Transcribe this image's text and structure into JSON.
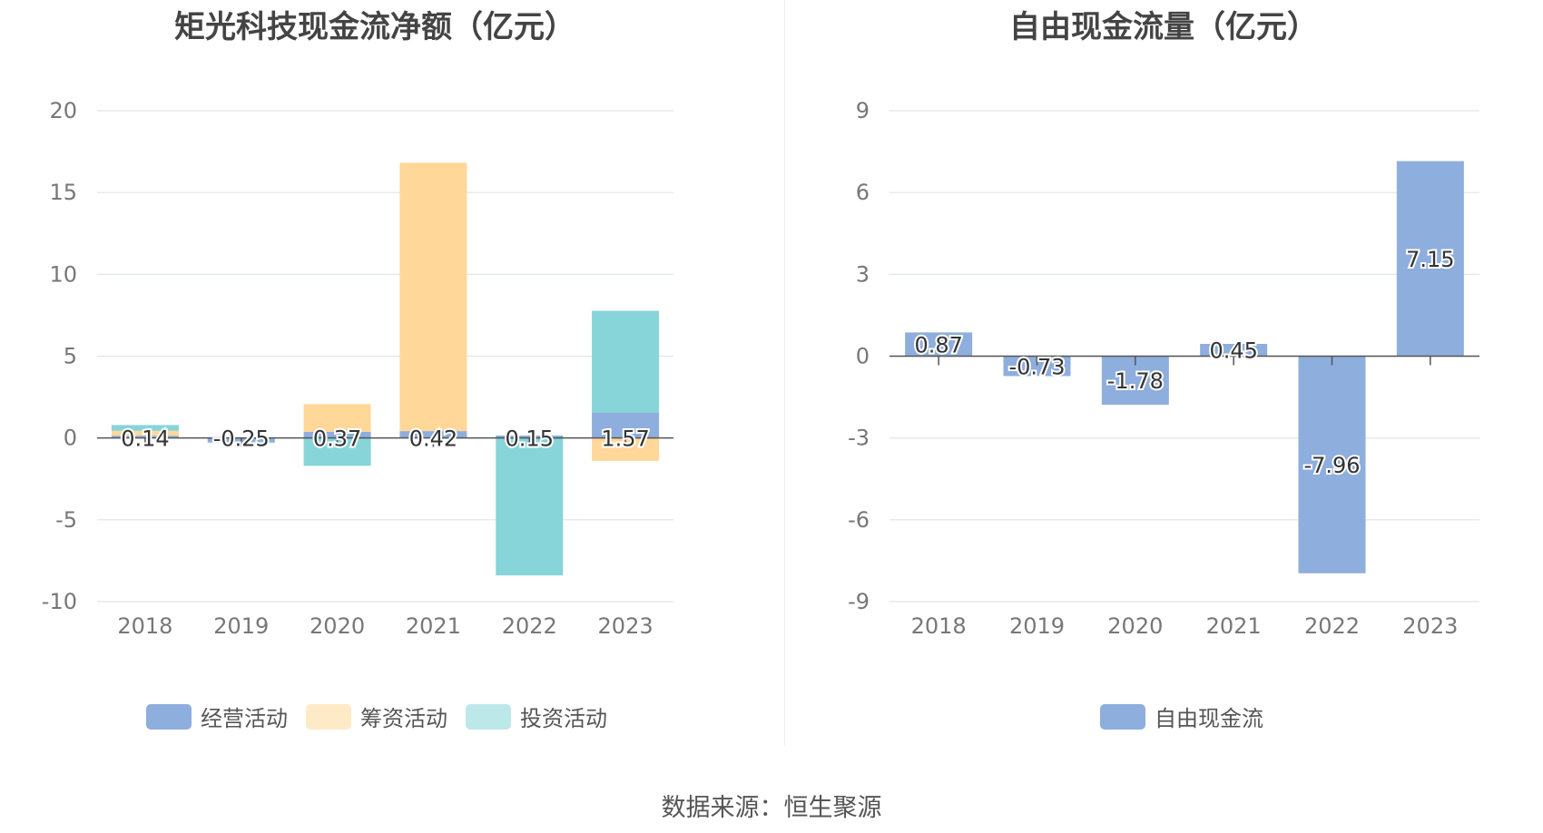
{
  "source_text": "数据来源：恒生聚源",
  "chart_data": [
    {
      "type": "bar",
      "stacked": true,
      "title": "矩光科技现金流净额（亿元）",
      "categories": [
        "2018",
        "2019",
        "2020",
        "2021",
        "2022",
        "2023"
      ],
      "ylim": [
        -10,
        20
      ],
      "yticks": [
        20,
        15,
        10,
        5,
        0,
        -5,
        -10
      ],
      "grid": true,
      "legend_position": "bottom",
      "series": [
        {
          "name": "经营活动",
          "color": "#8eaedd",
          "values": [
            0.14,
            -0.25,
            0.37,
            0.42,
            0.15,
            1.57
          ]
        },
        {
          "name": "筹资活动",
          "color": "#ffd899",
          "values": [
            0.3,
            0.0,
            1.7,
            16.4,
            0.0,
            -1.4
          ]
        },
        {
          "name": "投资活动",
          "color": "#87d5d8",
          "values": [
            0.35,
            -0.05,
            -1.7,
            0.0,
            -8.4,
            6.2
          ]
        }
      ],
      "data_labels": [
        "0.14",
        "-0.25",
        "0.37",
        "0.42",
        "0.15",
        "1.57"
      ]
    },
    {
      "type": "bar",
      "title": "自由现金流量（亿元）",
      "categories": [
        "2018",
        "2019",
        "2020",
        "2021",
        "2022",
        "2023"
      ],
      "ylim": [
        -9,
        9
      ],
      "yticks": [
        9,
        6,
        3,
        0,
        -3,
        -6,
        -9
      ],
      "grid": true,
      "legend_position": "bottom",
      "series": [
        {
          "name": "自由现金流",
          "color": "#8eaedd",
          "values": [
            0.87,
            -0.73,
            -1.78,
            0.45,
            -7.96,
            7.15
          ]
        }
      ],
      "data_labels": [
        "0.87",
        "-0.73",
        "-1.78",
        "0.45",
        "-7.96",
        "7.15"
      ]
    }
  ]
}
